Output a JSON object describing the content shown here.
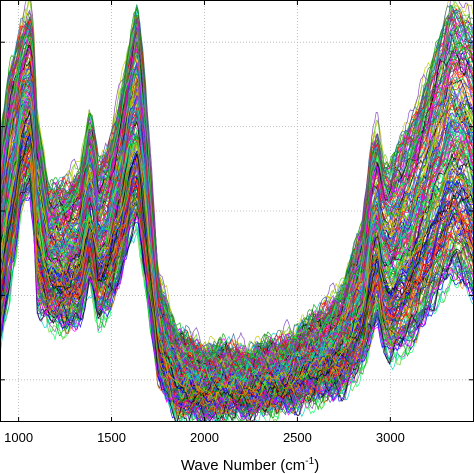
{
  "chart_data": {
    "type": "line",
    "title": "",
    "xlabel": "Wave Number (cm",
    "xlabel_superscript": "-1",
    "xlabel_close": ")",
    "ylabel": "",
    "xlim": [
      900,
      3450
    ],
    "ylim": [
      0,
      1
    ],
    "grid": true,
    "x_ticks": [
      1000,
      1500,
      2000,
      2500,
      3000
    ],
    "x_tick_labels": [
      "1000",
      "1500",
      "2000",
      "2500",
      "3000"
    ],
    "y_ticks": [
      0.1,
      0.3,
      0.5,
      0.7,
      0.9
    ],
    "legend": "none",
    "series_count_estimate": 250,
    "envelope": {
      "x": [
        900,
        950,
        990,
        1010,
        1030,
        1060,
        1080,
        1100,
        1160,
        1250,
        1330,
        1380,
        1400,
        1430,
        1480,
        1550,
        1600,
        1640,
        1680,
        1750,
        1850,
        2000,
        2200,
        2400,
        2600,
        2750,
        2850,
        2900,
        2930,
        2960,
        3000,
        3100,
        3200,
        3280,
        3330,
        3380,
        3420,
        3450
      ],
      "upper": [
        0.66,
        0.82,
        0.88,
        0.92,
        0.95,
        0.98,
        0.94,
        0.73,
        0.54,
        0.56,
        0.6,
        0.72,
        0.7,
        0.6,
        0.64,
        0.78,
        0.9,
        0.98,
        0.8,
        0.35,
        0.2,
        0.17,
        0.16,
        0.18,
        0.24,
        0.32,
        0.46,
        0.66,
        0.7,
        0.62,
        0.6,
        0.7,
        0.82,
        0.92,
        0.99,
        0.98,
        0.96,
        0.94
      ],
      "mean": [
        0.46,
        0.62,
        0.7,
        0.77,
        0.8,
        0.82,
        0.76,
        0.52,
        0.4,
        0.42,
        0.45,
        0.56,
        0.54,
        0.45,
        0.48,
        0.6,
        0.72,
        0.76,
        0.6,
        0.24,
        0.13,
        0.1,
        0.1,
        0.12,
        0.16,
        0.2,
        0.3,
        0.44,
        0.48,
        0.4,
        0.37,
        0.44,
        0.55,
        0.62,
        0.66,
        0.65,
        0.63,
        0.6
      ],
      "lower": [
        0.18,
        0.3,
        0.42,
        0.5,
        0.52,
        0.54,
        0.47,
        0.27,
        0.24,
        0.22,
        0.24,
        0.33,
        0.3,
        0.23,
        0.26,
        0.34,
        0.44,
        0.46,
        0.33,
        0.11,
        0.02,
        0.02,
        0.03,
        0.04,
        0.06,
        0.08,
        0.13,
        0.2,
        0.24,
        0.18,
        0.15,
        0.17,
        0.25,
        0.3,
        0.33,
        0.33,
        0.31,
        0.28
      ]
    },
    "series_colors": [
      "#0000ff",
      "#ff0000",
      "#00aa00",
      "#000000",
      "#ff00ff",
      "#00c8c8",
      "#c8c800",
      "#7f3fbf",
      "#1f7f1f",
      "#ff8000",
      "#3f3fff",
      "#bf1f1f",
      "#66cc33",
      "#993399",
      "#00ff66",
      "#336699"
    ]
  }
}
